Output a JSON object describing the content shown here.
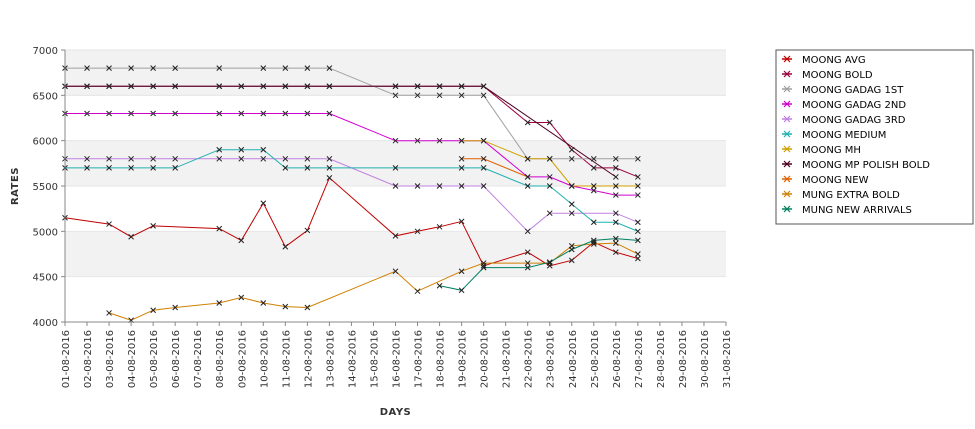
{
  "chart_data": {
    "type": "line",
    "xlabel": "DAYS",
    "ylabel": "RATES",
    "ylim": [
      4000,
      7000
    ],
    "yticks": [
      4000,
      4500,
      5000,
      5500,
      6000,
      6500,
      7000
    ],
    "grid": "alternating horizontal bands",
    "legend": "right",
    "categories": [
      "01-08-2016",
      "02-08-2016",
      "03-08-2016",
      "04-08-2016",
      "05-08-2016",
      "06-08-2016",
      "07-08-2016",
      "08-08-2016",
      "09-08-2016",
      "10-08-2016",
      "11-08-2016",
      "12-08-2016",
      "13-08-2016",
      "14-08-2016",
      "15-08-2016",
      "16-08-2016",
      "17-08-2016",
      "18-08-2016",
      "19-08-2016",
      "20-08-2016",
      "21-08-2016",
      "22-08-2016",
      "23-08-2016",
      "24-08-2016",
      "25-08-2016",
      "26-08-2016",
      "27-08-2016",
      "28-08-2016",
      "29-08-2016",
      "30-08-2016",
      "31-08-2016"
    ],
    "series": [
      {
        "name": "MOONG AVG",
        "color": "#c00000",
        "values": [
          5150,
          null,
          5080,
          4940,
          5060,
          null,
          null,
          5030,
          4900,
          5310,
          4830,
          5010,
          5590,
          null,
          null,
          4950,
          5000,
          5050,
          5110,
          4620,
          null,
          4770,
          4620,
          4680,
          4880,
          4770,
          4700,
          null,
          null,
          null,
          null
        ]
      },
      {
        "name": "MOONG BOLD",
        "color": "#9b0040",
        "values": [
          6600,
          6600,
          6600,
          6600,
          6600,
          6600,
          null,
          6600,
          6600,
          6600,
          6600,
          6600,
          6600,
          null,
          null,
          6600,
          6600,
          6600,
          6600,
          6600,
          null,
          6200,
          6200,
          5900,
          5700,
          5700,
          5600,
          null,
          null,
          null,
          null
        ]
      },
      {
        "name": "MOONG GADAG 1ST",
        "color": "#a0a0a0",
        "values": [
          6800,
          6800,
          6800,
          6800,
          6800,
          6800,
          null,
          6800,
          null,
          6800,
          6800,
          6800,
          6800,
          null,
          null,
          6500,
          6500,
          6500,
          6500,
          6500,
          null,
          5800,
          5800,
          5800,
          5800,
          5800,
          5800,
          null,
          null,
          null,
          null
        ]
      },
      {
        "name": "MOONG GADAG 2ND",
        "color": "#d000d0",
        "values": [
          6300,
          6300,
          6300,
          6300,
          6300,
          6300,
          null,
          6300,
          6300,
          6300,
          6300,
          6300,
          6300,
          null,
          null,
          6000,
          6000,
          6000,
          6000,
          6000,
          null,
          5600,
          5600,
          5500,
          5450,
          5400,
          5400,
          null,
          null,
          null,
          null
        ]
      },
      {
        "name": "MOONG GADAG 3RD",
        "color": "#c080e0",
        "values": [
          5800,
          5800,
          5800,
          5800,
          5800,
          5800,
          null,
          5800,
          5800,
          5800,
          5800,
          5800,
          5800,
          null,
          null,
          5500,
          5500,
          5500,
          5500,
          5500,
          null,
          5000,
          5200,
          5200,
          null,
          5200,
          5100,
          null,
          null,
          null,
          null
        ]
      },
      {
        "name": "MOONG MEDIUM",
        "color": "#20b0b0",
        "values": [
          5700,
          5700,
          5700,
          5700,
          5700,
          5700,
          null,
          5900,
          5900,
          5900,
          5700,
          5700,
          5700,
          null,
          null,
          5700,
          null,
          null,
          5700,
          5700,
          null,
          5500,
          5500,
          5300,
          5100,
          5100,
          5000,
          null,
          null,
          null,
          null
        ]
      },
      {
        "name": "MOONG MH",
        "color": "#d0a000",
        "values": [
          null,
          null,
          null,
          null,
          null,
          null,
          null,
          null,
          null,
          null,
          null,
          null,
          null,
          null,
          null,
          null,
          null,
          null,
          6000,
          6000,
          null,
          5800,
          5800,
          5500,
          5500,
          5500,
          5500,
          null,
          null,
          null,
          null
        ]
      },
      {
        "name": "MOONG MP POLISH BOLD",
        "color": "#500020",
        "values": [
          6600,
          6600,
          6600,
          6600,
          6600,
          6600,
          null,
          6600,
          6600,
          6600,
          6600,
          6600,
          6600,
          null,
          null,
          6600,
          6600,
          6600,
          6600,
          6600,
          null,
          null,
          null,
          null,
          null,
          5600,
          null,
          null,
          null,
          null,
          null
        ]
      },
      {
        "name": "MOONG NEW",
        "color": "#e06000",
        "values": [
          null,
          null,
          null,
          null,
          null,
          null,
          null,
          null,
          null,
          null,
          null,
          null,
          null,
          null,
          null,
          null,
          null,
          null,
          5800,
          5800,
          null,
          5600,
          null,
          null,
          null,
          null,
          null,
          null,
          null,
          null,
          null
        ]
      },
      {
        "name": "MUNG EXTRA BOLD",
        "color": "#d08000",
        "values": [
          null,
          null,
          4100,
          4020,
          4130,
          4160,
          null,
          4210,
          4270,
          4210,
          4170,
          4160,
          null,
          null,
          null,
          4560,
          4340,
          null,
          4560,
          4650,
          null,
          4650,
          4650,
          4840,
          4860,
          4870,
          4750,
          null,
          null,
          null,
          null
        ]
      },
      {
        "name": "MUNG NEW ARRIVALS",
        "color": "#008060",
        "values": [
          null,
          null,
          null,
          null,
          null,
          null,
          null,
          null,
          null,
          null,
          null,
          null,
          null,
          null,
          null,
          null,
          null,
          4400,
          4350,
          4600,
          null,
          4600,
          4660,
          4800,
          4900,
          4920,
          4900,
          null,
          null,
          null,
          null
        ]
      }
    ]
  }
}
